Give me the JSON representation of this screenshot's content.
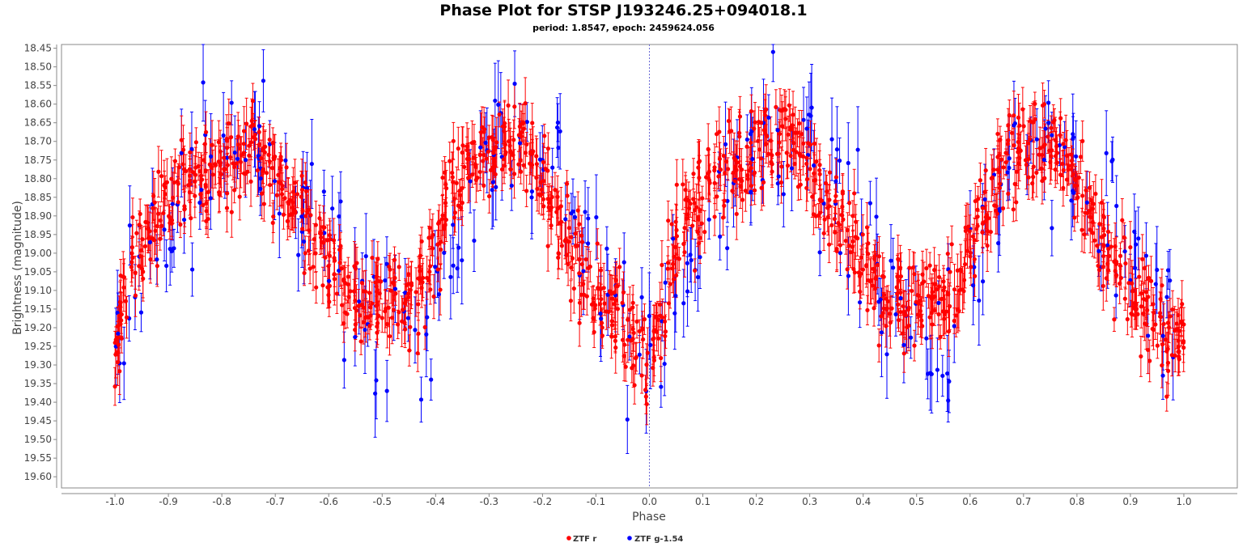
{
  "chart_data": {
    "type": "scatter",
    "title": "Phase Plot for STSP J193246.25+094018.1",
    "subtitle": "period: 1.8547, epoch: 2459624.056",
    "xlabel": "Phase",
    "ylabel": "Brightness (magnitude)",
    "xlim": [
      -1.1,
      1.1
    ],
    "ylim": [
      18.44,
      19.63
    ],
    "y_inverted": true,
    "x_ticks": [
      "-1.0",
      "-0.9",
      "-0.8",
      "-0.7",
      "-0.6",
      "-0.5",
      "-0.4",
      "-0.3",
      "-0.2",
      "-0.1",
      "0.0",
      "0.1",
      "0.2",
      "0.3",
      "0.4",
      "0.5",
      "0.6",
      "0.7",
      "0.8",
      "0.9",
      "1.0"
    ],
    "y_ticks": [
      "18.45",
      "18.50",
      "18.55",
      "18.60",
      "18.65",
      "18.70",
      "18.75",
      "18.80",
      "18.85",
      "18.90",
      "18.95",
      "19.00",
      "19.05",
      "19.10",
      "19.15",
      "19.20",
      "19.25",
      "19.30",
      "19.35",
      "19.40",
      "19.45",
      "19.50",
      "19.55",
      "19.60"
    ],
    "legend_position": "bottom-center",
    "grid": false,
    "reference_line_x": 0.0,
    "series": [
      {
        "name": "ZTF r",
        "color": "#ff0000",
        "x": [
          -1.0,
          -0.98,
          -0.96,
          -0.94,
          -0.92,
          -0.9,
          -0.88,
          -0.86,
          -0.84,
          -0.82,
          -0.8,
          -0.78,
          -0.76,
          -0.74,
          -0.72,
          -0.7,
          -0.68,
          -0.66,
          -0.64,
          -0.62,
          -0.6,
          -0.58,
          -0.56,
          -0.54,
          -0.52,
          -0.5,
          -0.48,
          -0.46,
          -0.44,
          -0.42,
          -0.4,
          -0.38,
          -0.36,
          -0.34,
          -0.32,
          -0.3,
          -0.28,
          -0.26,
          -0.24,
          -0.22,
          -0.2,
          -0.18,
          -0.16,
          -0.14,
          -0.12,
          -0.1,
          -0.08,
          -0.06,
          -0.04,
          -0.02,
          0.0,
          0.02,
          0.04,
          0.06,
          0.08,
          0.1,
          0.12,
          0.14,
          0.16,
          0.18,
          0.2,
          0.22,
          0.24,
          0.26,
          0.28,
          0.3,
          0.32,
          0.34,
          0.36,
          0.38,
          0.4,
          0.42,
          0.44,
          0.46,
          0.48,
          0.5,
          0.52,
          0.54,
          0.56,
          0.58,
          0.6,
          0.62,
          0.64,
          0.66,
          0.68,
          0.7,
          0.72,
          0.74,
          0.76,
          0.78,
          0.8,
          0.82,
          0.84,
          0.86,
          0.88,
          0.9,
          0.92,
          0.94,
          0.96,
          0.98,
          1.0
        ],
        "y": [
          19.22,
          19.12,
          19.0,
          18.96,
          18.9,
          18.86,
          18.8,
          18.78,
          18.77,
          18.76,
          18.76,
          18.74,
          18.72,
          18.71,
          18.76,
          18.8,
          18.84,
          18.88,
          18.92,
          18.97,
          19.02,
          19.06,
          19.1,
          19.12,
          19.15,
          19.14,
          19.12,
          19.14,
          19.12,
          19.08,
          18.98,
          18.88,
          18.84,
          18.78,
          18.74,
          18.72,
          18.72,
          18.71,
          18.72,
          18.74,
          18.8,
          18.88,
          18.94,
          19.0,
          19.05,
          19.1,
          19.14,
          19.18,
          19.22,
          19.24,
          19.26,
          19.16,
          19.04,
          18.96,
          18.88,
          18.82,
          18.78,
          18.78,
          18.77,
          18.76,
          18.76,
          18.74,
          18.72,
          18.71,
          18.76,
          18.8,
          18.84,
          18.88,
          18.92,
          18.97,
          19.02,
          19.06,
          19.1,
          19.12,
          19.15,
          19.14,
          19.12,
          19.14,
          19.12,
          19.08,
          18.98,
          18.88,
          18.84,
          18.78,
          18.74,
          18.72,
          18.72,
          18.71,
          18.72,
          18.74,
          18.8,
          18.88,
          18.94,
          19.0,
          19.05,
          19.1,
          19.14,
          19.18,
          19.22,
          19.24,
          19.22
        ]
      },
      {
        "name": "ZTF g-1.54",
        "color": "#0000ff",
        "x": [
          -0.99,
          -0.95,
          -0.91,
          -0.87,
          -0.83,
          -0.79,
          -0.75,
          -0.71,
          -0.67,
          -0.63,
          -0.59,
          -0.55,
          -0.51,
          -0.47,
          -0.43,
          -0.39,
          -0.35,
          -0.31,
          -0.27,
          -0.23,
          -0.19,
          -0.15,
          -0.11,
          -0.07,
          -0.03,
          0.01,
          0.05,
          0.09,
          0.13,
          0.17,
          0.21,
          0.25,
          0.29,
          0.33,
          0.37,
          0.41,
          0.45,
          0.49,
          0.53,
          0.57,
          0.61,
          0.65,
          0.69,
          0.73,
          0.77,
          0.81,
          0.85,
          0.89,
          0.93,
          0.97
        ],
        "y": [
          19.2,
          19.05,
          18.95,
          18.85,
          18.78,
          18.72,
          18.7,
          18.72,
          18.82,
          18.92,
          19.02,
          19.12,
          19.18,
          19.2,
          19.22,
          19.02,
          18.88,
          18.76,
          18.7,
          18.7,
          18.76,
          18.86,
          19.0,
          19.1,
          19.18,
          19.24,
          19.1,
          18.96,
          18.86,
          18.78,
          18.72,
          18.7,
          18.72,
          18.82,
          18.92,
          19.02,
          19.12,
          19.18,
          19.2,
          19.22,
          19.02,
          18.88,
          18.76,
          18.7,
          18.7,
          18.76,
          18.86,
          19.0,
          19.1,
          19.18
        ]
      }
    ]
  }
}
